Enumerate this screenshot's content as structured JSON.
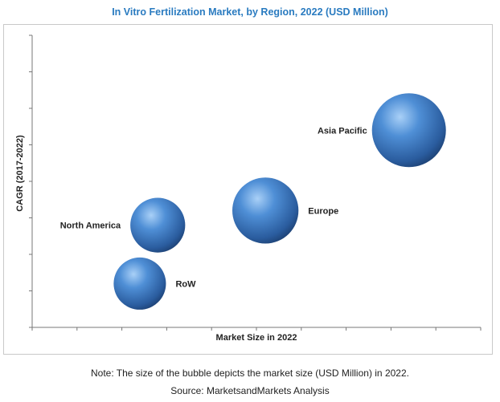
{
  "chart_data": {
    "type": "bubble",
    "title": "In Vitro Fertilization Market, by Region, 2022 (USD Million)",
    "xlabel": "Market Size in 2022",
    "ylabel": "CAGR (2017-2022)",
    "xlim": [
      0,
      10
    ],
    "ylim": [
      0,
      8
    ],
    "grid": false,
    "series": [
      {
        "name": "Asia Pacific",
        "x": 8.4,
        "y": 5.4,
        "size": 10
      },
      {
        "name": "Europe",
        "x": 5.2,
        "y": 3.2,
        "size": 8
      },
      {
        "name": "North America",
        "x": 2.8,
        "y": 2.8,
        "size": 5.5
      },
      {
        "name": "RoW",
        "x": 2.4,
        "y": 1.2,
        "size": 5
      }
    ]
  },
  "footer": {
    "note": "Note: The size of the bubble depicts the market size (USD Million) in 2022.",
    "source": "Source: MarketsandMarkets Analysis"
  }
}
